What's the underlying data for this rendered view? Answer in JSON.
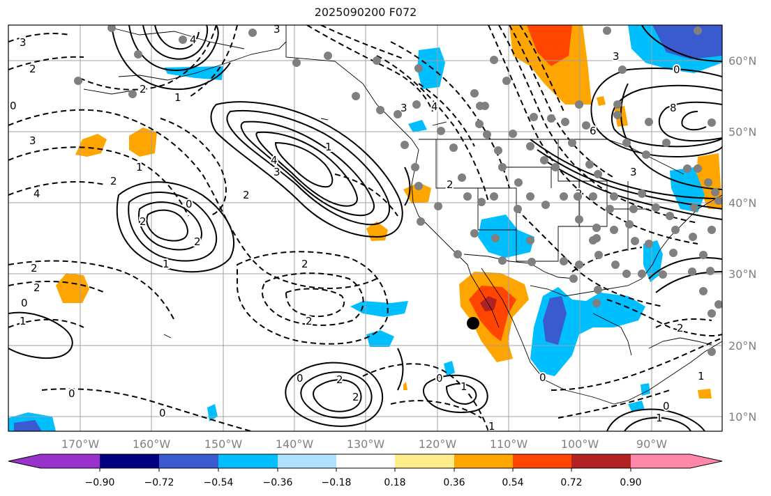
{
  "title": "2025090200 F072",
  "colors": {
    "neg_090": "#9933cc",
    "neg_072": "#000080",
    "neg_054": "#3a5bd0",
    "neg_036": "#00bfff",
    "neg_018": "#aee0ff",
    "neutral": "#ffffff",
    "pos_018": "#ffec8b",
    "pos_036": "#ffa500",
    "pos_054": "#ff4500",
    "pos_072": "#b22222",
    "pos_090": "#ff88aa",
    "station": "#808080",
    "grid": "#a0a0a0"
  },
  "lat_labels": [
    "60°N",
    "50°N",
    "40°N",
    "30°N",
    "20°N",
    "10°N"
  ],
  "lon_labels": [
    "170°W",
    "160°W",
    "150°W",
    "140°W",
    "130°W",
    "120°W",
    "110°W",
    "100°W",
    "90°W"
  ],
  "colorbar": {
    "ticks": [
      "−0.90",
      "−0.72",
      "−0.54",
      "−0.36",
      "−0.18",
      "0.18",
      "0.36",
      "0.54",
      "0.72",
      "0.90"
    ]
  },
  "contour_labels": [
    "3",
    "2",
    "0",
    "3",
    "4",
    "2",
    "1",
    "4",
    "3",
    "2",
    "1",
    "1",
    "0",
    "2",
    "2",
    "3",
    "4",
    "3",
    "2",
    "1",
    "0",
    "2",
    "2",
    "2",
    "2",
    "0",
    "1",
    "0",
    "2",
    "2",
    "1",
    "0",
    "0",
    "0",
    "1",
    "0",
    "1",
    "2",
    "3",
    "4",
    "6",
    "8",
    "2",
    "3",
    "2",
    "0",
    "1"
  ]
}
